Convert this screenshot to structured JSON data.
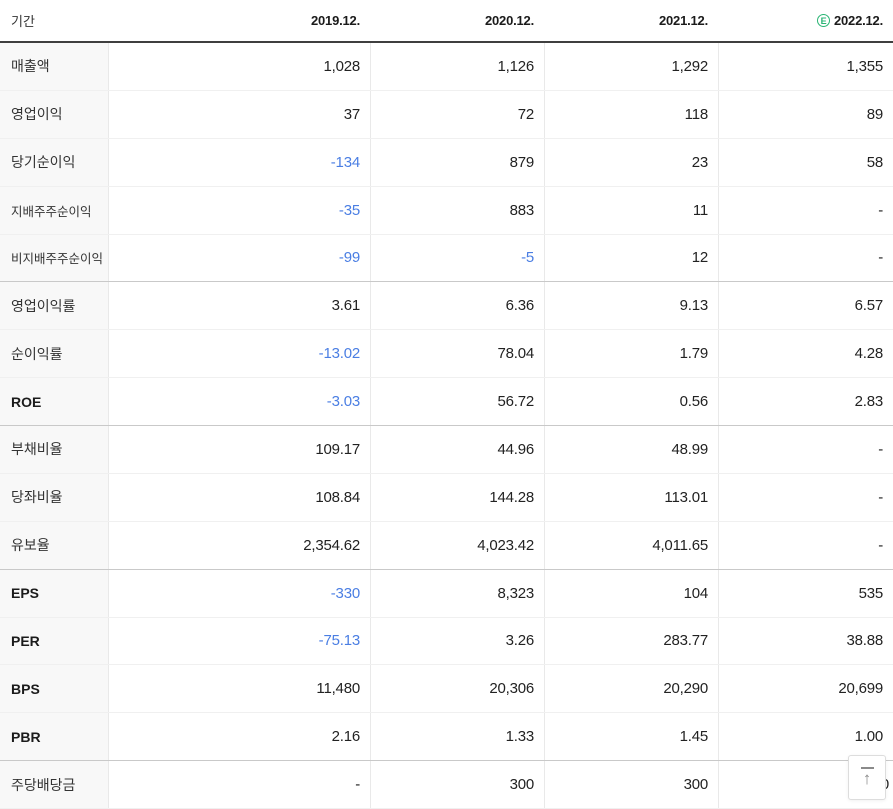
{
  "colors": {
    "negative": "#4a7ee3",
    "estimate_green": "#2ab574",
    "header_border": "#3f3f3f"
  },
  "table": {
    "header": {
      "period_label": "기간",
      "columns": [
        "2019.12.",
        "2020.12.",
        "2021.12.",
        "2022.12."
      ],
      "estimate_badge": "E"
    },
    "rows": [
      {
        "label": "매출액",
        "values": [
          "1,028",
          "1,126",
          "1,292",
          "1,355"
        ]
      },
      {
        "label": "영업이익",
        "values": [
          "37",
          "72",
          "118",
          "89"
        ]
      },
      {
        "label": "당기순이익",
        "values": [
          "-134",
          "879",
          "23",
          "58"
        ]
      },
      {
        "label": "지배주주순이익",
        "values": [
          "-35",
          "883",
          "11",
          "-"
        ]
      },
      {
        "label": "비지배주주순이익",
        "values": [
          "-99",
          "-5",
          "12",
          "-"
        ]
      },
      {
        "label": "영업이익률",
        "values": [
          "3.61",
          "6.36",
          "9.13",
          "6.57"
        ]
      },
      {
        "label": "순이익률",
        "values": [
          "-13.02",
          "78.04",
          "1.79",
          "4.28"
        ]
      },
      {
        "label": "ROE",
        "values": [
          "-3.03",
          "56.72",
          "0.56",
          "2.83"
        ]
      },
      {
        "label": "부채비율",
        "values": [
          "109.17",
          "44.96",
          "48.99",
          "-"
        ]
      },
      {
        "label": "당좌비율",
        "values": [
          "108.84",
          "144.28",
          "113.01",
          "-"
        ]
      },
      {
        "label": "유보율",
        "values": [
          "2,354.62",
          "4,023.42",
          "4,011.65",
          "-"
        ]
      },
      {
        "label": "EPS",
        "values": [
          "-330",
          "8,323",
          "104",
          "535"
        ]
      },
      {
        "label": "PER",
        "values": [
          "-75.13",
          "3.26",
          "283.77",
          "38.88"
        ]
      },
      {
        "label": "BPS",
        "values": [
          "11,480",
          "20,306",
          "20,290",
          "20,699"
        ]
      },
      {
        "label": "PBR",
        "values": [
          "2.16",
          "1.33",
          "1.45",
          "1.00"
        ]
      },
      {
        "label": "주당배당금",
        "values": [
          "-",
          "300",
          "300",
          "300"
        ]
      }
    ]
  },
  "scroll_top_button": {
    "icon": "scroll-to-top-arrow-icon"
  }
}
